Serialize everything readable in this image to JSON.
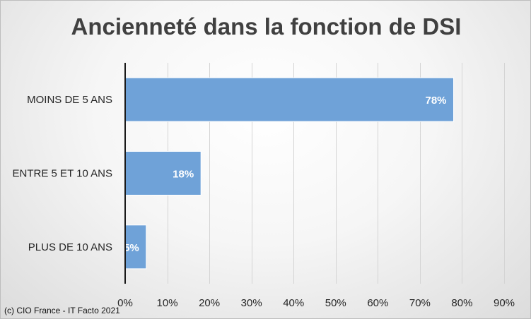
{
  "chart_data": {
    "type": "bar",
    "orientation": "horizontal",
    "title": "Ancienneté dans la fonction de DSI",
    "categories": [
      "MOINS DE 5 ANS",
      "ENTRE 5 ET 10 ANS",
      "PLUS DE 10 ANS"
    ],
    "values": [
      78,
      18,
      5
    ],
    "data_labels": [
      "78%",
      "18%",
      "5%"
    ],
    "xlim": [
      0,
      90
    ],
    "x_ticks": [
      0,
      10,
      20,
      30,
      40,
      50,
      60,
      70,
      80,
      90
    ],
    "x_tick_labels": [
      "0%",
      "10%",
      "20%",
      "30%",
      "40%",
      "50%",
      "60%",
      "70%",
      "80%",
      "90%"
    ],
    "xlabel": "",
    "ylabel": "",
    "grid": true,
    "legend": "none",
    "colors": {
      "bar": "#6fa2d8",
      "bar_edge": "#ffffff",
      "gridline": "#d4d4d4",
      "axis": "#1a1a1a",
      "text": "#262626",
      "data_label": "#ffffff"
    }
  },
  "credit": "(c) CIO France - IT Facto 2021"
}
